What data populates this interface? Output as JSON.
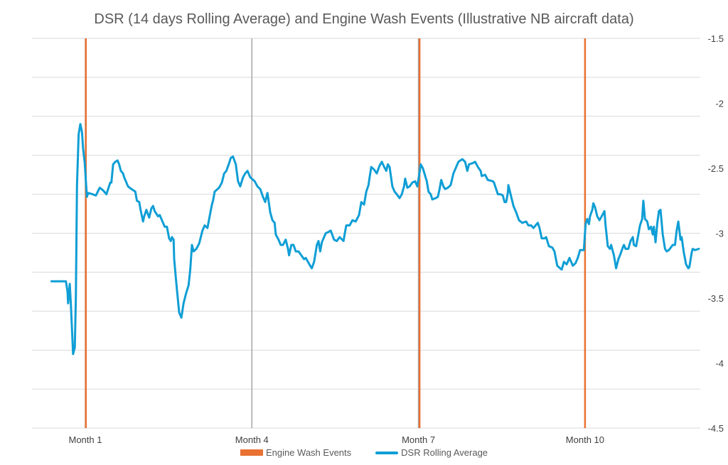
{
  "chart_data": {
    "type": "line",
    "title": "DSR (14 days Rolling Average) and Engine Wash Events (Illustrative NB aircraft data)",
    "xlabel": "",
    "ylabel": "",
    "x_tick_labels": [
      {
        "month": 1,
        "label": "Month 1"
      },
      {
        "month": 4,
        "label": "Month 4"
      },
      {
        "month": 7,
        "label": "Month 7"
      },
      {
        "month": 10,
        "label": "Month 10"
      }
    ],
    "y_axis_side": "right",
    "ylim": [
      -4.5,
      -1.5
    ],
    "y_ticks": [
      -1.5,
      -2,
      -2.5,
      -3,
      -3.5,
      -4,
      -4.5
    ],
    "y_tick_labels": [
      "-1.5",
      "-2",
      "-2.5",
      "-3",
      "-3.5",
      "-4",
      "-4.5"
    ],
    "grid": true,
    "legend_position": "bottom",
    "series": [
      {
        "name": "DSR Rolling Average",
        "kind": "line",
        "color": "#0F9ED5",
        "points": [
          [
            0.39,
            -3.37
          ],
          [
            0.65,
            -3.37
          ],
          [
            0.68,
            -3.45
          ],
          [
            0.69,
            -3.54
          ],
          [
            0.72,
            -3.39
          ],
          [
            0.74,
            -3.55
          ],
          [
            0.77,
            -3.83
          ],
          [
            0.78,
            -3.93
          ],
          [
            0.81,
            -3.88
          ],
          [
            0.83,
            -3.5
          ],
          [
            0.85,
            -2.63
          ],
          [
            0.88,
            -2.24
          ],
          [
            0.91,
            -2.16
          ],
          [
            0.94,
            -2.22
          ],
          [
            0.96,
            -2.35
          ],
          [
            0.99,
            -2.46
          ],
          [
            1.01,
            -2.6
          ],
          [
            1.03,
            -2.72
          ],
          [
            1.05,
            -2.69
          ],
          [
            1.13,
            -2.7
          ],
          [
            1.19,
            -2.71
          ],
          [
            1.26,
            -2.65
          ],
          [
            1.32,
            -2.67
          ],
          [
            1.38,
            -2.7
          ],
          [
            1.45,
            -2.61
          ],
          [
            1.47,
            -2.61
          ],
          [
            1.5,
            -2.47
          ],
          [
            1.54,
            -2.45
          ],
          [
            1.58,
            -2.44
          ],
          [
            1.61,
            -2.47
          ],
          [
            1.64,
            -2.52
          ],
          [
            1.68,
            -2.54
          ],
          [
            1.7,
            -2.57
          ],
          [
            1.77,
            -2.64
          ],
          [
            1.83,
            -2.66
          ],
          [
            1.9,
            -2.68
          ],
          [
            1.93,
            -2.75
          ],
          [
            1.97,
            -2.76
          ],
          [
            2.0,
            -2.83
          ],
          [
            2.04,
            -2.91
          ],
          [
            2.06,
            -2.87
          ],
          [
            2.1,
            -2.82
          ],
          [
            2.15,
            -2.88
          ],
          [
            2.19,
            -2.81
          ],
          [
            2.22,
            -2.79
          ],
          [
            2.25,
            -2.83
          ],
          [
            2.31,
            -2.87
          ],
          [
            2.34,
            -2.86
          ],
          [
            2.37,
            -2.89
          ],
          [
            2.43,
            -2.95
          ],
          [
            2.47,
            -2.95
          ],
          [
            2.51,
            -3.04
          ],
          [
            2.54,
            -3.06
          ],
          [
            2.56,
            -3.03
          ],
          [
            2.59,
            -3.05
          ],
          [
            2.6,
            -3.2
          ],
          [
            2.64,
            -3.39
          ],
          [
            2.69,
            -3.61
          ],
          [
            2.73,
            -3.65
          ],
          [
            2.77,
            -3.54
          ],
          [
            2.81,
            -3.47
          ],
          [
            2.86,
            -3.4
          ],
          [
            2.89,
            -3.28
          ],
          [
            2.92,
            -3.09
          ],
          [
            2.95,
            -3.14
          ],
          [
            3.0,
            -3.12
          ],
          [
            3.05,
            -3.08
          ],
          [
            3.11,
            -2.98
          ],
          [
            3.15,
            -2.94
          ],
          [
            3.2,
            -2.96
          ],
          [
            3.24,
            -2.87
          ],
          [
            3.28,
            -2.78
          ],
          [
            3.3,
            -2.75
          ],
          [
            3.33,
            -2.68
          ],
          [
            3.41,
            -2.65
          ],
          [
            3.46,
            -2.61
          ],
          [
            3.5,
            -2.54
          ],
          [
            3.54,
            -2.52
          ],
          [
            3.59,
            -2.46
          ],
          [
            3.62,
            -2.42
          ],
          [
            3.66,
            -2.41
          ],
          [
            3.71,
            -2.47
          ],
          [
            3.75,
            -2.6
          ],
          [
            3.79,
            -2.64
          ],
          [
            3.84,
            -2.57
          ],
          [
            3.88,
            -2.54
          ],
          [
            3.92,
            -2.52
          ],
          [
            3.97,
            -2.57
          ],
          [
            4.05,
            -2.6
          ],
          [
            4.1,
            -2.64
          ],
          [
            4.15,
            -2.66
          ],
          [
            4.2,
            -2.72
          ],
          [
            4.24,
            -2.76
          ],
          [
            4.28,
            -2.69
          ],
          [
            4.33,
            -2.84
          ],
          [
            4.37,
            -2.9
          ],
          [
            4.41,
            -2.92
          ],
          [
            4.43,
            -3.01
          ],
          [
            4.48,
            -3.05
          ],
          [
            4.52,
            -3.09
          ],
          [
            4.56,
            -3.09
          ],
          [
            4.61,
            -3.05
          ],
          [
            4.65,
            -3.12
          ],
          [
            4.67,
            -3.17
          ],
          [
            4.71,
            -3.09
          ],
          [
            4.75,
            -3.09
          ],
          [
            4.79,
            -3.14
          ],
          [
            4.84,
            -3.14
          ],
          [
            4.89,
            -3.17
          ],
          [
            4.94,
            -3.2
          ],
          [
            4.97,
            -3.19
          ],
          [
            5.01,
            -3.22
          ],
          [
            5.05,
            -3.25
          ],
          [
            5.08,
            -3.27
          ],
          [
            5.12,
            -3.22
          ],
          [
            5.17,
            -3.09
          ],
          [
            5.2,
            -3.06
          ],
          [
            5.23,
            -3.14
          ],
          [
            5.26,
            -3.07
          ],
          [
            5.33,
            -3.0
          ],
          [
            5.38,
            -2.99
          ],
          [
            5.42,
            -2.98
          ],
          [
            5.48,
            -3.05
          ],
          [
            5.53,
            -3.06
          ],
          [
            5.58,
            -3.03
          ],
          [
            5.65,
            -3.06
          ],
          [
            5.67,
            -3.01
          ],
          [
            5.7,
            -2.94
          ],
          [
            5.76,
            -2.94
          ],
          [
            5.81,
            -2.9
          ],
          [
            5.87,
            -2.91
          ],
          [
            5.93,
            -2.86
          ],
          [
            5.97,
            -2.76
          ],
          [
            6.02,
            -2.78
          ],
          [
            6.06,
            -2.68
          ],
          [
            6.1,
            -2.63
          ],
          [
            6.12,
            -2.57
          ],
          [
            6.15,
            -2.49
          ],
          [
            6.2,
            -2.51
          ],
          [
            6.25,
            -2.54
          ],
          [
            6.3,
            -2.48
          ],
          [
            6.34,
            -2.45
          ],
          [
            6.36,
            -2.47
          ],
          [
            6.42,
            -2.52
          ],
          [
            6.45,
            -2.47
          ],
          [
            6.48,
            -2.49
          ],
          [
            6.53,
            -2.64
          ],
          [
            6.57,
            -2.68
          ],
          [
            6.61,
            -2.7
          ],
          [
            6.66,
            -2.73
          ],
          [
            6.7,
            -2.7
          ],
          [
            6.74,
            -2.64
          ],
          [
            6.76,
            -2.58
          ],
          [
            6.8,
            -2.65
          ],
          [
            6.84,
            -2.64
          ],
          [
            6.89,
            -2.61
          ],
          [
            6.94,
            -2.6
          ],
          [
            6.98,
            -2.64
          ],
          [
            7.02,
            -2.53
          ],
          [
            7.04,
            -2.47
          ],
          [
            7.08,
            -2.5
          ],
          [
            7.15,
            -2.6
          ],
          [
            7.18,
            -2.68
          ],
          [
            7.22,
            -2.7
          ],
          [
            7.25,
            -2.74
          ],
          [
            7.31,
            -2.73
          ],
          [
            7.35,
            -2.72
          ],
          [
            7.38,
            -2.66
          ],
          [
            7.41,
            -2.59
          ],
          [
            7.45,
            -2.64
          ],
          [
            7.48,
            -2.66
          ],
          [
            7.53,
            -2.65
          ],
          [
            7.58,
            -2.63
          ],
          [
            7.63,
            -2.54
          ],
          [
            7.68,
            -2.49
          ],
          [
            7.72,
            -2.45
          ],
          [
            7.79,
            -2.43
          ],
          [
            7.84,
            -2.45
          ],
          [
            7.88,
            -2.52
          ],
          [
            7.91,
            -2.47
          ],
          [
            7.98,
            -2.46
          ],
          [
            8.02,
            -2.45
          ],
          [
            8.07,
            -2.49
          ],
          [
            8.12,
            -2.52
          ],
          [
            8.14,
            -2.56
          ],
          [
            8.2,
            -2.55
          ],
          [
            8.25,
            -2.59
          ],
          [
            8.34,
            -2.6
          ],
          [
            8.36,
            -2.61
          ],
          [
            8.43,
            -2.7
          ],
          [
            8.48,
            -2.7
          ],
          [
            8.52,
            -2.71
          ],
          [
            8.55,
            -2.76
          ],
          [
            8.58,
            -2.76
          ],
          [
            8.61,
            -2.69
          ],
          [
            8.62,
            -2.63
          ],
          [
            8.66,
            -2.7
          ],
          [
            8.71,
            -2.79
          ],
          [
            8.76,
            -2.84
          ],
          [
            8.81,
            -2.9
          ],
          [
            8.87,
            -2.92
          ],
          [
            8.94,
            -2.91
          ],
          [
            8.98,
            -2.94
          ],
          [
            9.03,
            -2.94
          ],
          [
            9.07,
            -2.96
          ],
          [
            9.11,
            -2.94
          ],
          [
            9.15,
            -2.92
          ],
          [
            9.18,
            -2.96
          ],
          [
            9.22,
            -3.04
          ],
          [
            9.27,
            -3.04
          ],
          [
            9.3,
            -3.03
          ],
          [
            9.35,
            -3.1
          ],
          [
            9.41,
            -3.11
          ],
          [
            9.45,
            -3.14
          ],
          [
            9.5,
            -3.25
          ],
          [
            9.55,
            -3.27
          ],
          [
            9.58,
            -3.28
          ],
          [
            9.62,
            -3.22
          ],
          [
            9.67,
            -3.24
          ],
          [
            9.72,
            -3.19
          ],
          [
            9.75,
            -3.22
          ],
          [
            9.78,
            -3.25
          ],
          [
            9.83,
            -3.23
          ],
          [
            9.87,
            -3.19
          ],
          [
            9.91,
            -3.13
          ],
          [
            9.98,
            -3.13
          ],
          [
            9.99,
            -3.06
          ],
          [
            10.01,
            -2.93
          ],
          [
            10.04,
            -2.89
          ],
          [
            10.07,
            -2.93
          ],
          [
            10.09,
            -2.87
          ],
          [
            10.13,
            -2.82
          ],
          [
            10.15,
            -2.77
          ],
          [
            10.18,
            -2.8
          ],
          [
            10.22,
            -2.87
          ],
          [
            10.26,
            -2.9
          ],
          [
            10.3,
            -2.87
          ],
          [
            10.35,
            -2.83
          ],
          [
            10.37,
            -2.94
          ],
          [
            10.41,
            -3.1
          ],
          [
            10.45,
            -3.12
          ],
          [
            10.47,
            -3.09
          ],
          [
            10.52,
            -3.17
          ],
          [
            10.56,
            -3.27
          ],
          [
            10.6,
            -3.2
          ],
          [
            10.63,
            -3.17
          ],
          [
            10.68,
            -3.11
          ],
          [
            10.7,
            -3.09
          ],
          [
            10.73,
            -3.12
          ],
          [
            10.78,
            -3.12
          ],
          [
            10.82,
            -3.06
          ],
          [
            10.86,
            -3.03
          ],
          [
            10.88,
            -3.09
          ],
          [
            10.92,
            -3.1
          ],
          [
            10.96,
            -3.01
          ],
          [
            10.99,
            -2.94
          ],
          [
            11.03,
            -2.89
          ],
          [
            11.05,
            -2.75
          ],
          [
            11.08,
            -2.89
          ],
          [
            11.12,
            -2.91
          ],
          [
            11.15,
            -2.97
          ],
          [
            11.19,
            -2.95
          ],
          [
            11.22,
            -3.01
          ],
          [
            11.24,
            -2.95
          ],
          [
            11.27,
            -3.07
          ],
          [
            11.3,
            -2.93
          ],
          [
            11.33,
            -2.83
          ],
          [
            11.36,
            -2.82
          ],
          [
            11.4,
            -3.01
          ],
          [
            11.44,
            -3.12
          ],
          [
            11.47,
            -3.14
          ],
          [
            11.51,
            -3.13
          ],
          [
            11.58,
            -3.09
          ],
          [
            11.62,
            -3.09
          ],
          [
            11.65,
            -2.98
          ],
          [
            11.68,
            -2.91
          ],
          [
            11.72,
            -3.05
          ],
          [
            11.74,
            -3.03
          ],
          [
            11.78,
            -3.15
          ],
          [
            11.82,
            -3.24
          ],
          [
            11.86,
            -3.27
          ],
          [
            11.88,
            -3.26
          ],
          [
            11.92,
            -3.15
          ],
          [
            11.94,
            -3.12
          ],
          [
            11.98,
            -3.13
          ],
          [
            12.05,
            -3.12
          ]
        ]
      },
      {
        "name": "Engine Wash Events",
        "kind": "event-bars",
        "color": "#E97132",
        "event_months": [
          1.01,
          7.02,
          10.0
        ]
      }
    ]
  }
}
